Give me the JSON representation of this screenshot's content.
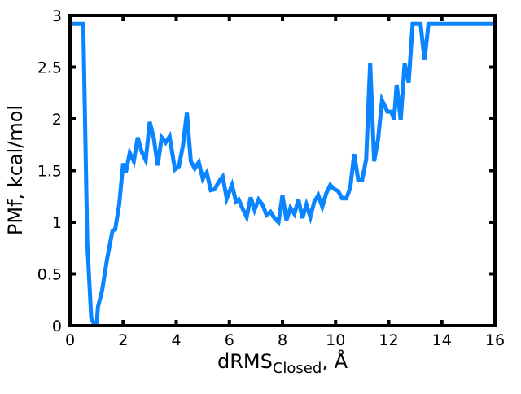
{
  "chart_data": {
    "type": "line",
    "title": "",
    "xlabel": {
      "main": "dRMS",
      "subscript": "Closed",
      "suffix": ", Å"
    },
    "ylabel": "PMf, kcal/mol",
    "xlim": [
      0,
      16
    ],
    "ylim": [
      0,
      3
    ],
    "xticks": [
      0,
      2,
      4,
      6,
      8,
      10,
      12,
      14,
      16
    ],
    "yticks": [
      0,
      0.5,
      1,
      1.5,
      2,
      2.5,
      3
    ],
    "xtick_labels": [
      "0",
      "2",
      "4",
      "6",
      "8",
      "10",
      "12",
      "14",
      "16"
    ],
    "ytick_labels": [
      "0",
      "0.5",
      "1",
      "1.5",
      "2",
      "2.5",
      "3"
    ],
    "grid": false,
    "legend": "none",
    "line_color": "#0a84ff",
    "series": [
      {
        "x": [
          0,
          0.5,
          0.65,
          0.8,
          0.9,
          1.0,
          1.05,
          1.2,
          1.4,
          1.6,
          1.7,
          1.85,
          2.0,
          2.1,
          2.25,
          2.4,
          2.55,
          2.7,
          2.85,
          3.0,
          3.15,
          3.3,
          3.45,
          3.6,
          3.75,
          3.95,
          4.1,
          4.25,
          4.4,
          4.55,
          4.7,
          4.85,
          5.0,
          5.15,
          5.3,
          5.45,
          5.6,
          5.75,
          5.9,
          6.1,
          6.25,
          6.35,
          6.5,
          6.65,
          6.8,
          6.95,
          7.1,
          7.25,
          7.4,
          7.55,
          7.7,
          7.85,
          8.0,
          8.15,
          8.3,
          8.45,
          8.6,
          8.75,
          8.9,
          9.05,
          9.2,
          9.35,
          9.5,
          9.65,
          9.8,
          9.95,
          10.1,
          10.25,
          10.4,
          10.55,
          10.7,
          10.85,
          11.0,
          11.15,
          11.3,
          11.45,
          11.6,
          11.75,
          11.95,
          12.1,
          12.2,
          12.3,
          12.45,
          12.6,
          12.75,
          12.9,
          13.05,
          13.2,
          13.35,
          13.5,
          13.65,
          13.8,
          13.95,
          14.1,
          14.3,
          14.45,
          14.65,
          14.8,
          16.0
        ],
        "y": [
          2.92,
          2.92,
          0.8,
          0.07,
          0.02,
          -0.02,
          0.18,
          0.33,
          0.65,
          0.92,
          0.93,
          1.17,
          1.57,
          1.48,
          1.67,
          1.59,
          1.82,
          1.68,
          1.6,
          1.97,
          1.82,
          1.55,
          1.82,
          1.77,
          1.83,
          1.51,
          1.54,
          1.74,
          2.06,
          1.59,
          1.52,
          1.58,
          1.42,
          1.48,
          1.31,
          1.32,
          1.39,
          1.44,
          1.23,
          1.36,
          1.2,
          1.22,
          1.13,
          1.05,
          1.24,
          1.12,
          1.22,
          1.17,
          1.07,
          1.1,
          1.04,
          1.0,
          1.26,
          1.02,
          1.14,
          1.08,
          1.22,
          1.04,
          1.17,
          1.05,
          1.2,
          1.26,
          1.15,
          1.28,
          1.36,
          1.32,
          1.3,
          1.23,
          1.23,
          1.33,
          1.66,
          1.41,
          1.41,
          1.61,
          2.54,
          1.59,
          1.8,
          2.18,
          2.07,
          2.07,
          1.99,
          2.33,
          1.99,
          2.54,
          2.35,
          2.92,
          2.92,
          2.92,
          2.57,
          2.92,
          2.92,
          2.92,
          2.92,
          2.92,
          2.92,
          2.92,
          2.92,
          2.92,
          2.92
        ]
      }
    ]
  }
}
